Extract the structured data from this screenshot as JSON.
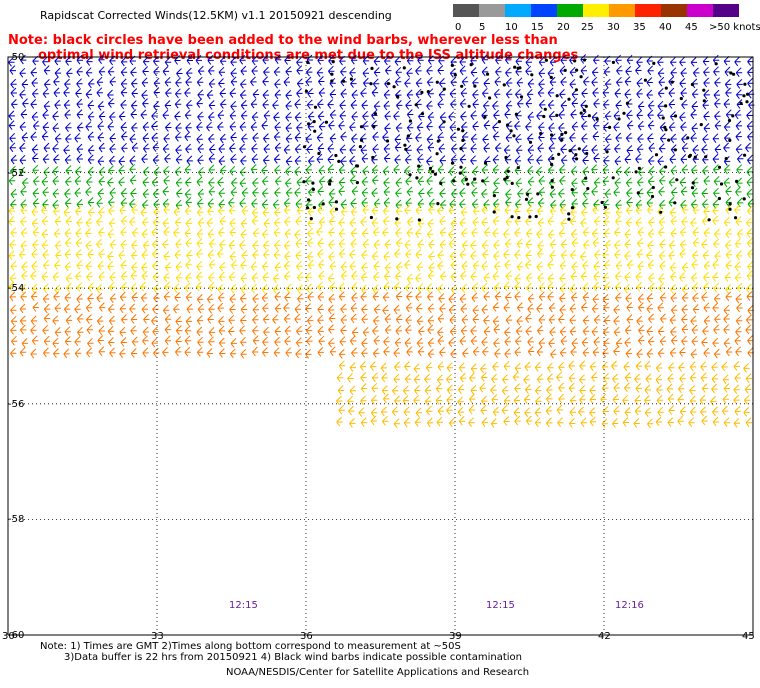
{
  "title": "Rapidscat Corrected Winds(12.5KM) v1.1 20150921 descending",
  "note": {
    "line1": "Note: black circles have been added to the wind barbs, wherever less than",
    "line2": "optimal wind retrieval conditions are met due to the ISS altitude changes"
  },
  "legend": {
    "labels": [
      "0",
      "5",
      "10",
      "15",
      "20",
      "25",
      "30",
      "35",
      "40",
      "45",
      ">50 knots"
    ],
    "colors": [
      "#555555",
      "#999999",
      "#00aaff",
      "#0044ff",
      "#00aa00",
      "#ffee00",
      "#ff9900",
      "#ff2200",
      "#993300",
      "#cc00cc",
      "#550088"
    ]
  },
  "axes": {
    "lat_labels": [
      "-50",
      "-52",
      "-54",
      "-56",
      "-58",
      "-60"
    ],
    "lon_labels": [
      "30",
      "33",
      "36",
      "39",
      "42",
      "45"
    ]
  },
  "time_labels": [
    "12:15",
    "12:15",
    "12:16"
  ],
  "footnote": {
    "line1": "Note: 1) Times are GMT 2)Times along bottom correspond to measurement at ~50S",
    "line2": "3)Data buffer is 22 hrs from 20150921 4) Black wind barbs indicate possible contamination"
  },
  "credit": "NOAA/NESDIS/Center for Satellite Applications and Research",
  "map_data": {
    "lat_range": [
      -60,
      -50
    ],
    "lon_range": [
      30,
      45
    ],
    "wind_bands": [
      {
        "lat_from": -50,
        "lat_to": -51.9,
        "color": "#0000cc",
        "speed_knots": "10-15"
      },
      {
        "lat_from": -51.9,
        "lat_to": -52.6,
        "color": "#00aa00",
        "speed_knots": "15-20"
      },
      {
        "lat_from": -52.6,
        "lat_to": -54.1,
        "color": "#ffdd00",
        "speed_knots": "20-25"
      },
      {
        "lat_from": -54.1,
        "lat_to": -55.3,
        "color": "#ff7700",
        "speed_knots": "25-30"
      },
      {
        "lat_from": -55.3,
        "lat_to": -56.5,
        "color": "#ffbb00",
        "speed_knots": "20-30"
      }
    ]
  }
}
